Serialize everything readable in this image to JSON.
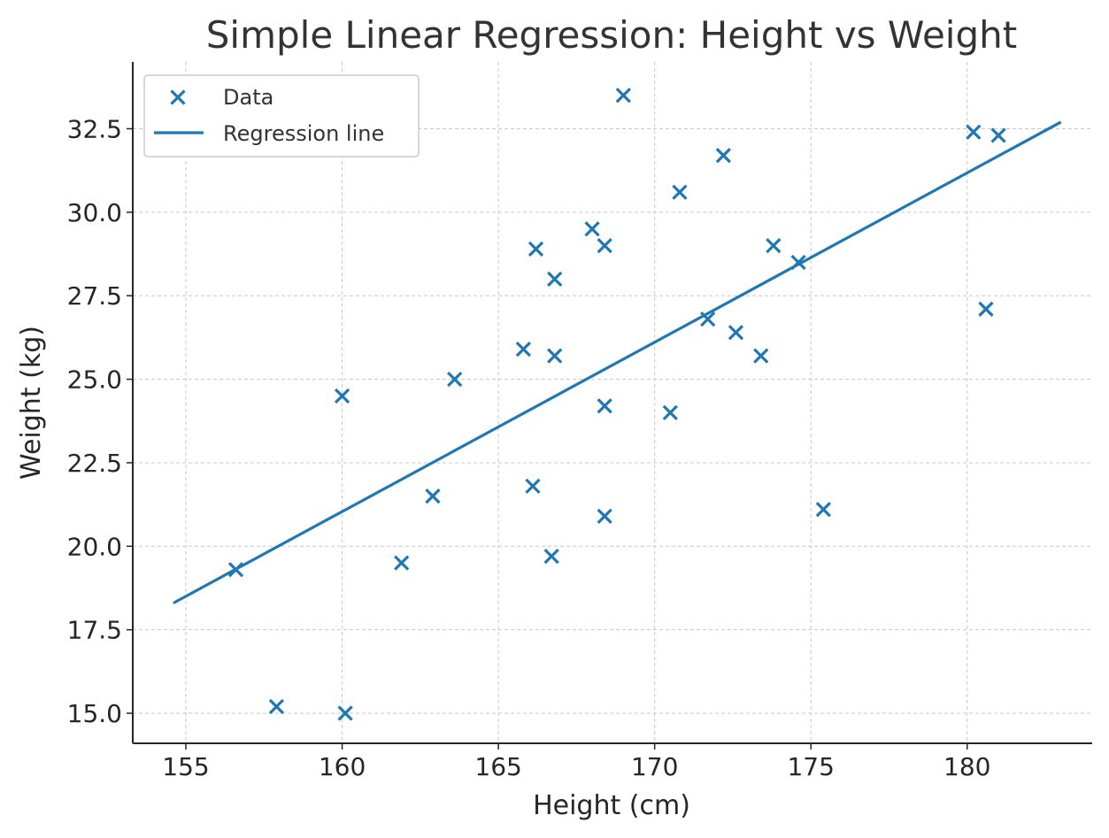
{
  "chart_data": {
    "type": "scatter",
    "title": "Simple Linear Regression: Height vs Weight",
    "xlabel": "Height (cm)",
    "ylabel": "Weight (kg)",
    "xlim": [
      153.3,
      184.0
    ],
    "ylim": [
      14.1,
      34.5
    ],
    "xticks": [
      155,
      160,
      165,
      170,
      175,
      180
    ],
    "yticks": [
      15.0,
      17.5,
      20.0,
      22.5,
      25.0,
      27.5,
      30.0,
      32.5
    ],
    "xtick_labels": [
      "155",
      "160",
      "165",
      "170",
      "175",
      "180"
    ],
    "ytick_labels": [
      "15.0",
      "17.5",
      "20.0",
      "22.5",
      "25.0",
      "27.5",
      "30.0",
      "32.5"
    ],
    "grid": true,
    "legend_position": "top-left",
    "color": "#1f77b4",
    "series": [
      {
        "name": "Data",
        "kind": "scatter",
        "marker": "x",
        "points": [
          [
            156.6,
            19.3
          ],
          [
            157.9,
            15.2
          ],
          [
            160.0,
            24.5
          ],
          [
            160.1,
            15.0
          ],
          [
            161.9,
            19.5
          ],
          [
            162.9,
            21.5
          ],
          [
            163.6,
            25.0
          ],
          [
            165.8,
            25.9
          ],
          [
            166.1,
            21.8
          ],
          [
            166.2,
            28.9
          ],
          [
            166.7,
            19.7
          ],
          [
            166.8,
            28.0
          ],
          [
            166.8,
            25.7
          ],
          [
            168.0,
            29.5
          ],
          [
            168.4,
            29.0
          ],
          [
            168.4,
            24.2
          ],
          [
            168.4,
            20.9
          ],
          [
            169.0,
            33.5
          ],
          [
            170.5,
            24.0
          ],
          [
            170.8,
            30.6
          ],
          [
            171.7,
            26.8
          ],
          [
            172.2,
            31.7
          ],
          [
            172.6,
            26.4
          ],
          [
            173.4,
            25.7
          ],
          [
            173.8,
            29.0
          ],
          [
            174.6,
            28.5
          ],
          [
            175.4,
            21.1
          ],
          [
            180.2,
            32.4
          ],
          [
            180.6,
            27.1
          ],
          [
            181.0,
            32.3
          ]
        ]
      },
      {
        "name": "Regression line",
        "kind": "line",
        "points": [
          [
            154.6,
            18.3
          ],
          [
            183.0,
            32.7
          ]
        ]
      }
    ]
  }
}
